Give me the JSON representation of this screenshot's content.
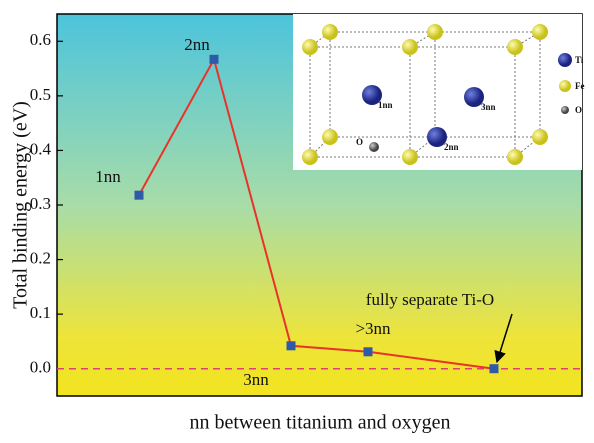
{
  "chart_data": {
    "type": "line",
    "categories": [
      "1nn",
      "2nn",
      "3nn",
      ">3nn",
      "fully separate Ti-O"
    ],
    "values": [
      0.318,
      0.567,
      0.042,
      0.031,
      0.0
    ],
    "color": "#e8332a",
    "marker_color": "#2e5aa8",
    "ylim": [
      -0.05,
      0.65
    ],
    "yticks": [
      {
        "value": 0,
        "label": "0.0"
      },
      0.1,
      0.2,
      0.3,
      0.4,
      0.5,
      0.6
    ],
    "ylabel": "Total binding energy (eV)",
    "xlabel": "nn between titanium and oxygen",
    "hline": 0,
    "inset": {
      "legend": [
        "Ti",
        "Fe",
        "O"
      ],
      "sites": [
        "1nn",
        "3nn",
        "2nn"
      ],
      "oxygen": "O"
    }
  }
}
